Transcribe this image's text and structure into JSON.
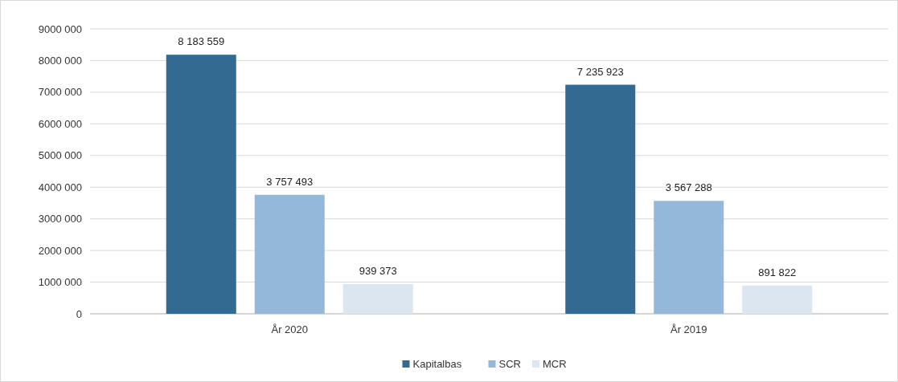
{
  "chart_data": {
    "type": "bar",
    "categories": [
      "År 2020",
      "År 2019"
    ],
    "series": [
      {
        "name": "Kapitalbas",
        "color": "#336a92",
        "values": [
          8183559,
          7235923
        ],
        "value_labels": [
          "8 183 559",
          "7 235 923"
        ]
      },
      {
        "name": "SCR",
        "color": "#93b8d9",
        "values": [
          3757493,
          3567288
        ],
        "value_labels": [
          "3 757 493",
          "3 567 288"
        ]
      },
      {
        "name": "MCR",
        "color": "#dbe6f0",
        "values": [
          939373,
          891822
        ],
        "value_labels": [
          "939 373",
          "891 822"
        ]
      }
    ],
    "ylim": [
      0,
      9000000
    ],
    "yticks": [
      0,
      {
        "value": 1000000,
        "label": "1000 000"
      },
      {
        "value": 2000000,
        "label": "2000 000"
      },
      {
        "value": 3000000,
        "label": "3000 000"
      },
      {
        "value": 4000000,
        "label": "4000 000"
      },
      {
        "value": 5000000,
        "label": "5000 000"
      },
      {
        "value": 6000000,
        "label": "6000 000"
      },
      {
        "value": 7000000,
        "label": "7000 000"
      },
      {
        "value": 8000000,
        "label": "8000 000"
      },
      {
        "value": 9000000,
        "label": "9000 000"
      }
    ],
    "grid": "y",
    "legend": "bottom"
  }
}
